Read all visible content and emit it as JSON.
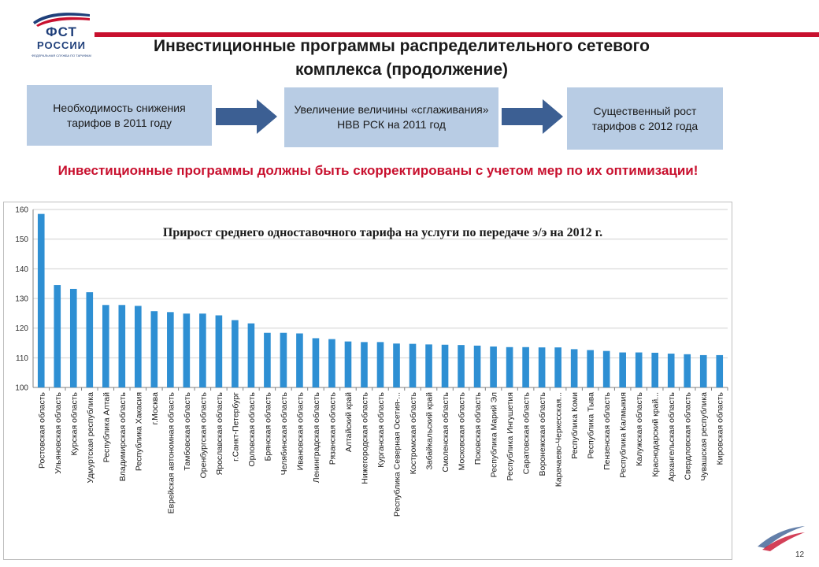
{
  "logo": {
    "text_line1": "ФСТ",
    "text_line2": "РОССИИ",
    "subtitle": "ФЕДЕРАЛЬНАЯ СЛУЖБА ПО ТАРИФАМ",
    "colors": {
      "blue": "#1f3f7a",
      "red": "#c8102e"
    }
  },
  "slide": {
    "title": "Инвестиционные программы распределительного сетевого комплекса (продолжение)",
    "steps": [
      "Необходимость снижения тарифов в 2011 году",
      "Увеличение величины «сглаживания» НВВ РСК на 2011 год",
      "Существенный рост тарифов с 2012 года"
    ],
    "warning": "Инвестиционные программы должны быть скорректированы с учетом мер по их оптимизации!",
    "page_number": "12"
  },
  "colors": {
    "accent_red": "#c8102e",
    "box_fill": "#b8cce4",
    "arrow_fill": "#3c5f93",
    "bar_fill": "#2e8fd3"
  },
  "chart_data": {
    "type": "bar",
    "title": "Прирост среднего одноставочного тарифа на услуги по передаче э/э на 2012 г.",
    "ylim": [
      100,
      160
    ],
    "yticks": [
      "100",
      "110",
      "120",
      "130",
      "140",
      "150",
      "160"
    ],
    "grid": true,
    "categories": [
      "Ростовская область",
      "Ульяновская область",
      "Курская область",
      "Удмуртская республика",
      "Республика Алтай",
      "Владимирская область",
      "Республика Хакасия",
      "г.Москва",
      "Еврейская автономная область",
      "Тамбовская область",
      "Оренбургская область",
      "Ярославская область",
      "г.Санкт-Петербург",
      "Орловская область",
      "Брянская область",
      "Челябинская область",
      "Ивановская область",
      "Ленинградская область",
      "Рязанская область",
      "Алтайский край",
      "Нижегородская область",
      "Курганская область",
      "Республика Северная Осетия-...",
      "Костромская область",
      "Забайкальский край",
      "Смоленская область",
      "Московская область",
      "Псковская область",
      "Республика Марий Эл",
      "Республика Ингушетия",
      "Саратовская область",
      "Воронежская область",
      "Карачаево-Черкесская...",
      "Республика Коми",
      "Республика Тыва",
      "Пензенская область",
      "Республика Калмыкия",
      "Калужская область",
      "Краснодарский край...",
      "Архангельская область",
      "Свердловская область",
      "Чувашская республика",
      "Кировская область"
    ],
    "values": [
      158.5,
      134.5,
      133.2,
      132.1,
      127.8,
      127.8,
      127.5,
      125.7,
      125.4,
      124.9,
      124.9,
      124.3,
      122.7,
      121.6,
      118.4,
      118.4,
      118.2,
      116.6,
      116.3,
      115.5,
      115.3,
      115.3,
      114.8,
      114.7,
      114.5,
      114.4,
      114.3,
      114.1,
      113.8,
      113.6,
      113.6,
      113.5,
      113.5,
      112.9,
      112.6,
      112.3,
      111.8,
      111.8,
      111.7,
      111.4,
      111.2,
      110.9,
      110.9
    ]
  }
}
